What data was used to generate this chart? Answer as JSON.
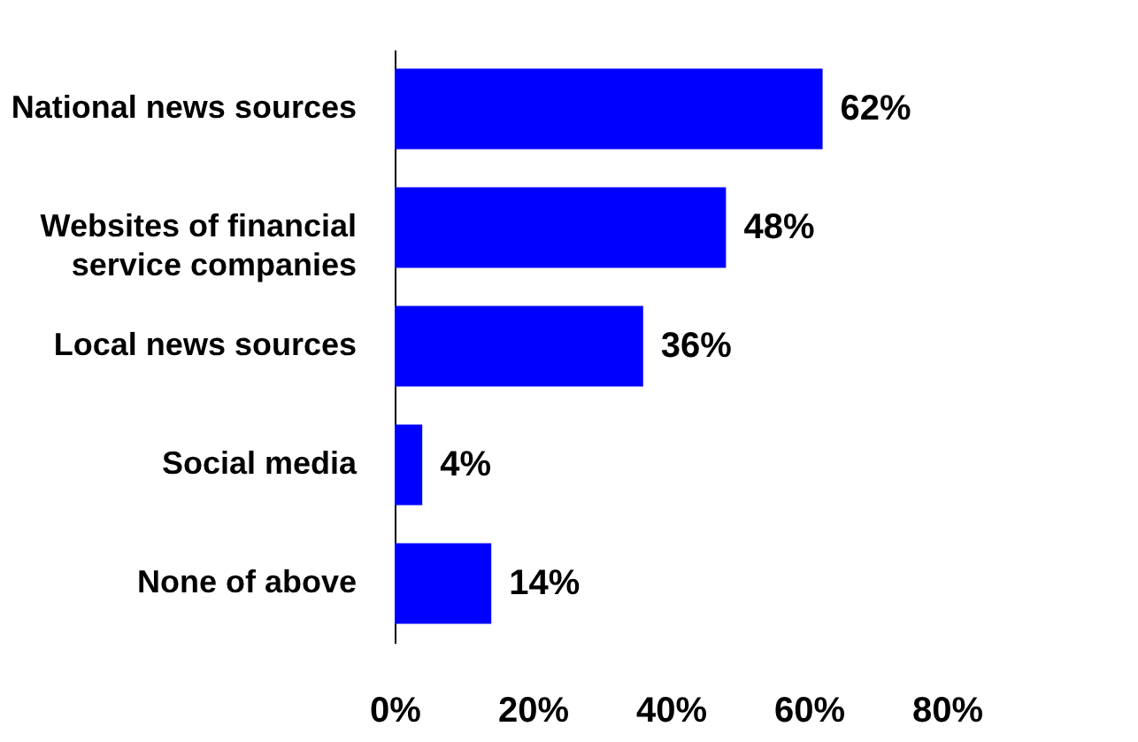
{
  "chart_data": {
    "type": "bar",
    "orientation": "horizontal",
    "categories": [
      "National news sources",
      "Websites of financial\nservice companies",
      "Local news sources",
      "Social media",
      "None of above"
    ],
    "values": [
      62,
      48,
      36,
      4,
      14
    ],
    "value_labels": [
      "62%",
      "48%",
      "36%",
      "4%",
      "14%"
    ],
    "color": "#0000ff",
    "xlim": [
      0,
      80
    ],
    "xticks": [
      {
        "value": 0,
        "label": "0%"
      },
      {
        "value": 20,
        "label": "20%"
      },
      {
        "value": 40,
        "label": "40%"
      },
      {
        "value": 60,
        "label": "60%"
      },
      {
        "value": 80,
        "label": "80%"
      }
    ],
    "grid": false
  }
}
